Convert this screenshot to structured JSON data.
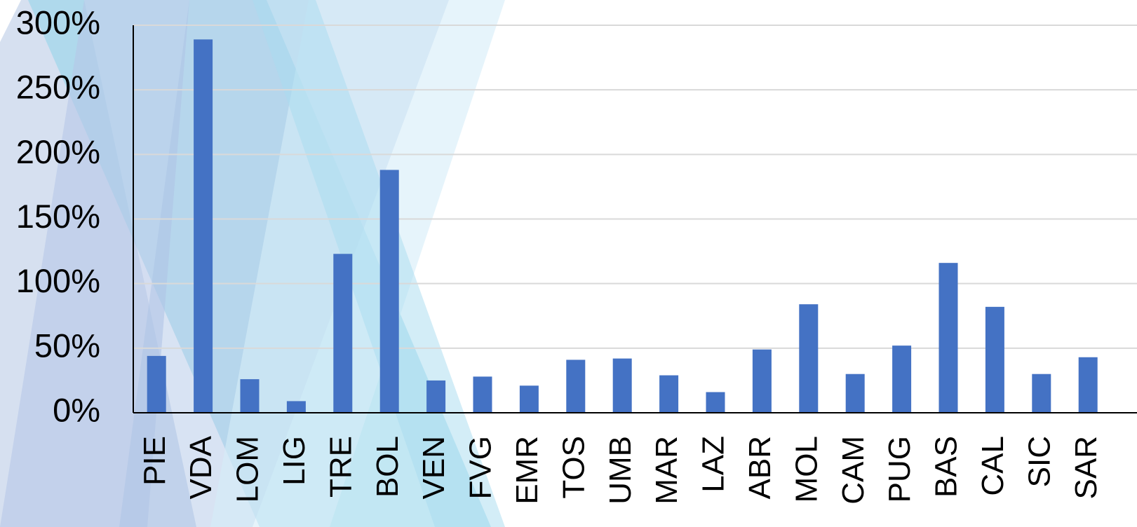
{
  "chart_data": {
    "type": "bar",
    "categories": [
      "PIE",
      "VDA",
      "LOM",
      "LIG",
      "TRE",
      "BOL",
      "VEN",
      "FVG",
      "EMR",
      "TOS",
      "UMB",
      "MAR",
      "LAZ",
      "ABR",
      "MOL",
      "CAM",
      "PUG",
      "BAS",
      "CAL",
      "SIC",
      "SAR"
    ],
    "values": [
      44,
      289,
      26,
      9,
      123,
      188,
      25,
      28,
      21,
      41,
      42,
      29,
      16,
      49,
      84,
      30,
      52,
      116,
      82,
      30,
      43
    ],
    "color": "#4472c4",
    "ylim": [
      0,
      300
    ],
    "yticks": [
      {
        "value": 0,
        "label": "0%"
      },
      {
        "value": 50,
        "label": "50%"
      },
      {
        "value": 100,
        "label": "100%"
      },
      {
        "value": 150,
        "label": "150%"
      },
      {
        "value": 200,
        "label": "200%"
      },
      {
        "value": 250,
        "label": "250%"
      },
      {
        "value": 300,
        "label": "300%"
      }
    ],
    "grid": true
  }
}
